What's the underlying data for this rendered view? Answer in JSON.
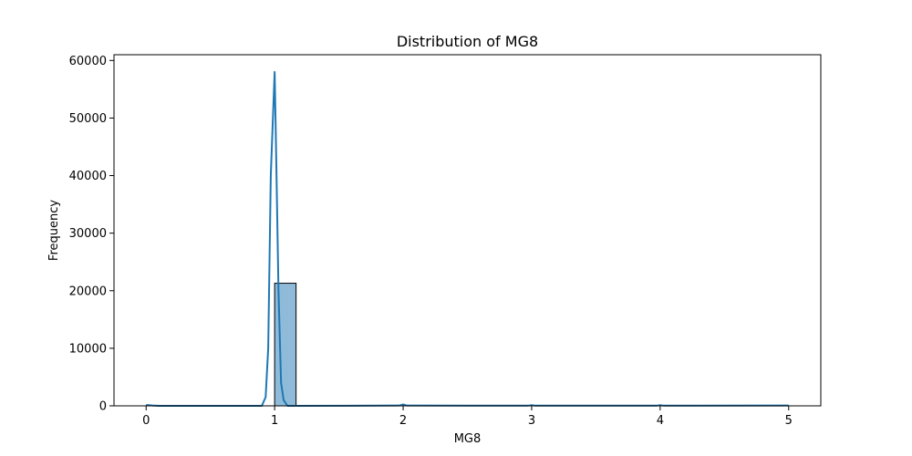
{
  "chart_data": {
    "type": "histogram",
    "title": "Distribution of MG8",
    "xlabel": "MG8",
    "ylabel": "Frequency",
    "xlim": [
      -0.25,
      5.25
    ],
    "ylim": [
      0,
      61000
    ],
    "x_ticks": [
      0,
      1,
      2,
      3,
      4,
      5
    ],
    "y_ticks": [
      0,
      10000,
      20000,
      30000,
      40000,
      50000,
      60000
    ],
    "bin_width": 0.1667,
    "bars": [
      {
        "x0": 0.0,
        "count": 10
      },
      {
        "x0": 1.0,
        "count": 21300
      },
      {
        "x0": 2.0,
        "count": 5
      },
      {
        "x0": 3.0,
        "count": 3
      },
      {
        "x0": 4.0,
        "count": 2
      },
      {
        "x0": 4.8333,
        "count": 1
      }
    ],
    "kde": {
      "x": [
        0.0,
        0.05,
        0.1,
        0.9,
        0.93,
        0.95,
        0.97,
        0.99,
        1.0,
        1.01,
        1.03,
        1.05,
        1.07,
        1.1,
        1.15,
        1.97,
        2.0,
        2.03,
        2.97,
        3.0,
        3.03,
        3.97,
        4.0,
        4.03,
        5.0
      ],
      "y": [
        150,
        60,
        0,
        0,
        1500,
        10000,
        40000,
        52000,
        58000,
        46000,
        20000,
        4000,
        1000,
        0,
        0,
        50,
        250,
        50,
        30,
        120,
        30,
        30,
        120,
        30,
        60
      ]
    },
    "bar_color": "#1f77b4",
    "bar_fill_opacity": 0.5,
    "line_color": "#1f77b4",
    "grid": false,
    "legend": "none"
  }
}
